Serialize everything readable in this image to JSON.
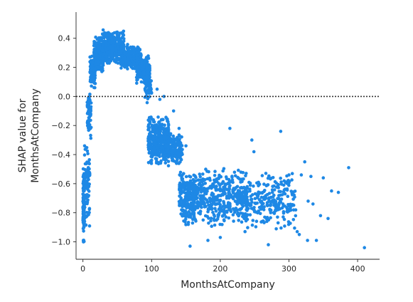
{
  "chart_data": {
    "type": "scatter",
    "title": "",
    "xlabel": "MonthsAtCompany",
    "ylabel_line1": "SHAP value for",
    "ylabel_line2": "MonthsAtCompany",
    "xlim": [
      -10,
      432
    ],
    "ylim": [
      -1.12,
      0.58
    ],
    "xticks": [
      0,
      100,
      200,
      300,
      400
    ],
    "yticks": [
      -1.0,
      -0.8,
      -0.6,
      -0.4,
      -0.2,
      0.0,
      0.2,
      0.4
    ],
    "ytick_labels": [
      "−1.0",
      "−0.8",
      "−0.6",
      "−0.4",
      "−0.2",
      "0.0",
      "0.2",
      "0.4"
    ],
    "reference_line_y": 0.0,
    "point_color": "#1e88e5",
    "grid": false,
    "clusters": [
      {
        "x": [
          0,
          2
        ],
        "y": [
          -1.02,
          -0.48
        ],
        "n": 120
      },
      {
        "x": [
          2,
          10
        ],
        "y": [
          -0.95,
          -0.3
        ],
        "n": 90
      },
      {
        "x": [
          6,
          12
        ],
        "y": [
          -0.3,
          0.05
        ],
        "n": 60
      },
      {
        "x": [
          10,
          18
        ],
        "y": [
          0.05,
          0.3
        ],
        "n": 80
      },
      {
        "x": [
          16,
          30
        ],
        "y": [
          0.15,
          0.42
        ],
        "n": 180
      },
      {
        "x": [
          28,
          60
        ],
        "y": [
          0.22,
          0.46
        ],
        "n": 320
      },
      {
        "x": [
          55,
          85
        ],
        "y": [
          0.18,
          0.36
        ],
        "n": 260
      },
      {
        "x": [
          78,
          98
        ],
        "y": [
          0.08,
          0.28
        ],
        "n": 200
      },
      {
        "x": [
          90,
          100
        ],
        "y": [
          -0.05,
          0.15
        ],
        "n": 40
      },
      {
        "x": [
          95,
          125
        ],
        "y": [
          -0.48,
          -0.12
        ],
        "n": 380
      },
      {
        "x": [
          120,
          145
        ],
        "y": [
          -0.48,
          -0.25
        ],
        "n": 170
      },
      {
        "x": [
          140,
          165
        ],
        "y": [
          -0.9,
          -0.5
        ],
        "n": 220
      },
      {
        "x": [
          160,
          240
        ],
        "y": [
          -0.9,
          -0.48
        ],
        "n": 420
      },
      {
        "x": [
          230,
          310
        ],
        "y": [
          -0.92,
          -0.5
        ],
        "n": 260
      }
    ],
    "points": [
      {
        "x": 108,
        "y": 0.05
      },
      {
        "x": 112,
        "y": -0.02
      },
      {
        "x": 118,
        "y": 0.0
      },
      {
        "x": 214,
        "y": -0.22
      },
      {
        "x": 246,
        "y": -0.3
      },
      {
        "x": 249,
        "y": -0.38
      },
      {
        "x": 288,
        "y": -0.24
      },
      {
        "x": 323,
        "y": -0.45
      },
      {
        "x": 387,
        "y": -0.49
      },
      {
        "x": 410,
        "y": -1.04
      },
      {
        "x": 270,
        "y": -1.02
      },
      {
        "x": 327,
        "y": -0.99
      },
      {
        "x": 340,
        "y": -0.99
      },
      {
        "x": 300,
        "y": -0.54
      },
      {
        "x": 318,
        "y": -0.54
      },
      {
        "x": 332,
        "y": -0.55
      },
      {
        "x": 350,
        "y": -0.56
      },
      {
        "x": 362,
        "y": -0.65
      },
      {
        "x": 372,
        "y": -0.66
      },
      {
        "x": 346,
        "y": -0.82
      },
      {
        "x": 357,
        "y": -0.84
      },
      {
        "x": 335,
        "y": -0.74
      },
      {
        "x": 328,
        "y": -0.72
      },
      {
        "x": 315,
        "y": -0.95
      },
      {
        "x": 312,
        "y": -0.93
      },
      {
        "x": 140,
        "y": -0.22
      },
      {
        "x": 132,
        "y": -0.1
      },
      {
        "x": 150,
        "y": -0.34
      },
      {
        "x": 156,
        "y": -1.03
      },
      {
        "x": 182,
        "y": -0.99
      },
      {
        "x": 200,
        "y": -0.97
      },
      {
        "x": 236,
        "y": -0.93
      }
    ]
  }
}
